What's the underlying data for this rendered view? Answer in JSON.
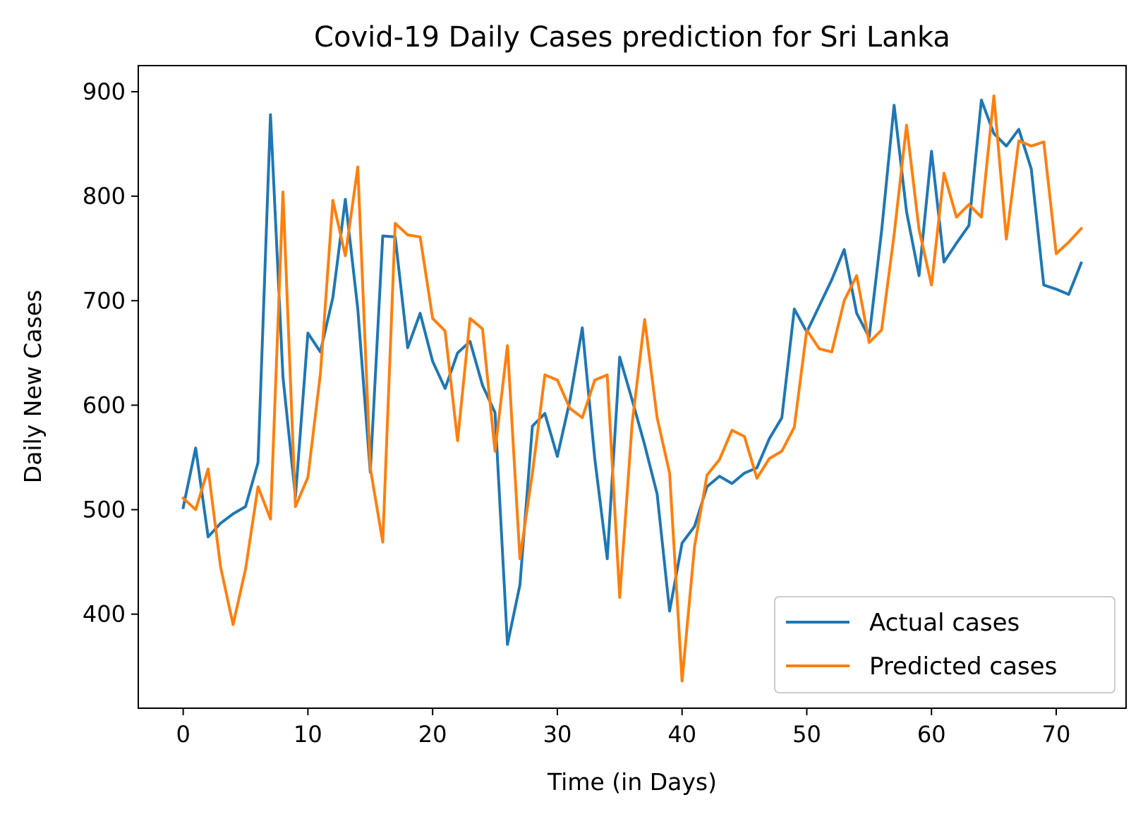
{
  "chart_data": {
    "type": "line",
    "title": "Covid-19 Daily Cases prediction for Sri Lanka",
    "xlabel": "Time (in Days)",
    "ylabel": "Daily New Cases",
    "xlim": [
      -3.6,
      75.6
    ],
    "ylim": [
      310,
      925
    ],
    "xticks": [
      0,
      10,
      20,
      30,
      40,
      50,
      60,
      70
    ],
    "yticks": [
      400,
      500,
      600,
      700,
      800,
      900
    ],
    "grid": false,
    "legend": "lower-right",
    "series": [
      {
        "name": "Actual cases",
        "color": "#1f77b4",
        "x": [
          0,
          1,
          2,
          3,
          4,
          5,
          6,
          7,
          8,
          9,
          10,
          11,
          12,
          13,
          14,
          15,
          16,
          17,
          18,
          19,
          20,
          21,
          22,
          23,
          24,
          25,
          26,
          27,
          28,
          29,
          30,
          31,
          32,
          33,
          34,
          35,
          36,
          37,
          38,
          39,
          40,
          41,
          42,
          43,
          44,
          45,
          46,
          47,
          48,
          49,
          50,
          51,
          52,
          53,
          54,
          55,
          56,
          57,
          58,
          59,
          60,
          61,
          62,
          63,
          64,
          65,
          66,
          67,
          68,
          69,
          70,
          71,
          72
        ],
        "values": [
          502,
          559,
          474,
          487,
          496,
          503,
          545,
          878,
          627,
          512,
          669,
          651,
          703,
          797,
          692,
          536,
          762,
          761,
          655,
          688,
          642,
          616,
          650,
          661,
          619,
          593,
          371,
          428,
          580,
          592,
          551,
          604,
          674,
          549,
          453,
          646,
          605,
          562,
          515,
          403,
          468,
          484,
          522,
          532,
          525,
          535,
          540,
          568,
          588,
          692,
          670,
          695,
          720,
          749,
          688,
          665,
          767,
          887,
          785,
          724,
          843,
          737,
          755,
          772,
          892,
          860,
          848,
          864,
          826,
          715,
          711,
          706,
          736
        ]
      },
      {
        "name": "Predicted cases",
        "color": "#ff7f0e",
        "x": [
          0,
          1,
          2,
          3,
          4,
          5,
          6,
          7,
          8,
          9,
          10,
          11,
          12,
          13,
          14,
          15,
          16,
          17,
          18,
          19,
          20,
          21,
          22,
          23,
          24,
          25,
          26,
          27,
          28,
          29,
          30,
          31,
          32,
          33,
          34,
          35,
          36,
          37,
          38,
          39,
          40,
          41,
          42,
          43,
          44,
          45,
          46,
          47,
          48,
          49,
          50,
          51,
          52,
          53,
          54,
          55,
          56,
          57,
          58,
          59,
          60,
          61,
          62,
          63,
          64,
          65,
          66,
          67,
          68,
          69,
          70,
          71,
          72
        ],
        "values": [
          511,
          500,
          539,
          445,
          390,
          443,
          522,
          491,
          804,
          503,
          531,
          630,
          796,
          743,
          828,
          540,
          469,
          774,
          763,
          761,
          683,
          671,
          566,
          683,
          673,
          556,
          657,
          453,
          535,
          629,
          624,
          597,
          588,
          624,
          629,
          416,
          583,
          682,
          588,
          535,
          336,
          465,
          533,
          548,
          576,
          570,
          530,
          549,
          556,
          579,
          672,
          654,
          651,
          700,
          724,
          660,
          672,
          763,
          868,
          768,
          715,
          822,
          780,
          792,
          780,
          896,
          759,
          853,
          848,
          852,
          745,
          756,
          769
        ]
      }
    ]
  }
}
